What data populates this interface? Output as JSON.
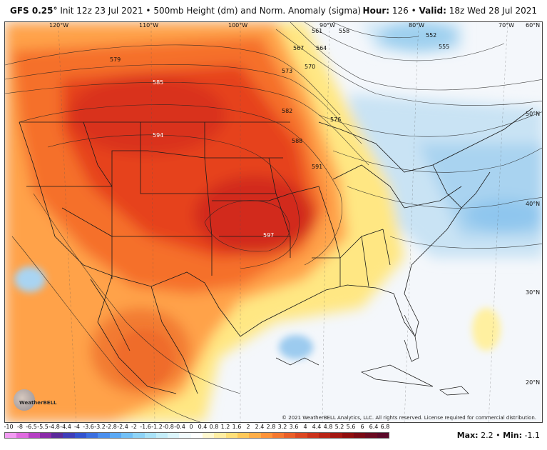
{
  "header": {
    "model": "GFS 0.25°",
    "description": "Init 12z 23 Jul 2021 • 500mb Height (dm) and Norm. Anomaly (sigma)",
    "hour_label": "Hour:",
    "hour_value": "126",
    "valid_label": "Valid:",
    "valid_value": "18z Wed 28 Jul 2021"
  },
  "map": {
    "longitude_labels": [
      "120°W",
      "110°W",
      "100°W",
      "90°W",
      "80°W",
      "70°W",
      "60°N"
    ],
    "latitude_labels": [
      "50°N",
      "40°N",
      "30°N",
      "20°N"
    ],
    "contour_labels": [
      "579",
      "585",
      "594",
      "597",
      "573",
      "582",
      "576",
      "570",
      "564",
      "567",
      "561",
      "558",
      "588",
      "591",
      "552",
      "555"
    ],
    "copyright": "© 2021 WeatherBELL Analytics, LLC. All rights reserved. License required for commercial distribution.",
    "logo_text": "WeatherBELL"
  },
  "colorbar": {
    "tick_labels": [
      "-10",
      "-8",
      "-6.5",
      "-5.5",
      "-4.8",
      "-4.4",
      "-4",
      "-3.6",
      "-3.2",
      "-2.8",
      "-2.4",
      "-2",
      "-1.6",
      "-1.2",
      "-0.8",
      "-0.4",
      "0",
      "0.4",
      "0.8",
      "1.2",
      "1.6",
      "2",
      "2.4",
      "2.8",
      "3.2",
      "3.6",
      "4",
      "4.4",
      "4.8",
      "5.2",
      "5.6",
      "6",
      "6.4",
      "6.8"
    ],
    "colors": [
      "#f29bf2",
      "#e06be0",
      "#b640c4",
      "#8a2aa8",
      "#5b2a9a",
      "#3f3db8",
      "#3353cf",
      "#3b6fe0",
      "#4a8fee",
      "#5ba9f5",
      "#72c0f7",
      "#8ed3f7",
      "#a9e2f8",
      "#c4edf9",
      "#dcf5fb",
      "#f2fbfd",
      "#ffffff",
      "#fff8d0",
      "#ffeea3",
      "#ffe07a",
      "#ffc95a",
      "#ffae47",
      "#ff9338",
      "#f5782f",
      "#ea5f28",
      "#dc4722",
      "#cb331c",
      "#b82416",
      "#a31712",
      "#8e0e0e",
      "#7a0a14",
      "#6a0a20",
      "#5a0828"
    ]
  },
  "stats": {
    "max_label": "Max:",
    "max_value": "2.2",
    "min_label": "Min:",
    "min_value": "-1.1"
  }
}
